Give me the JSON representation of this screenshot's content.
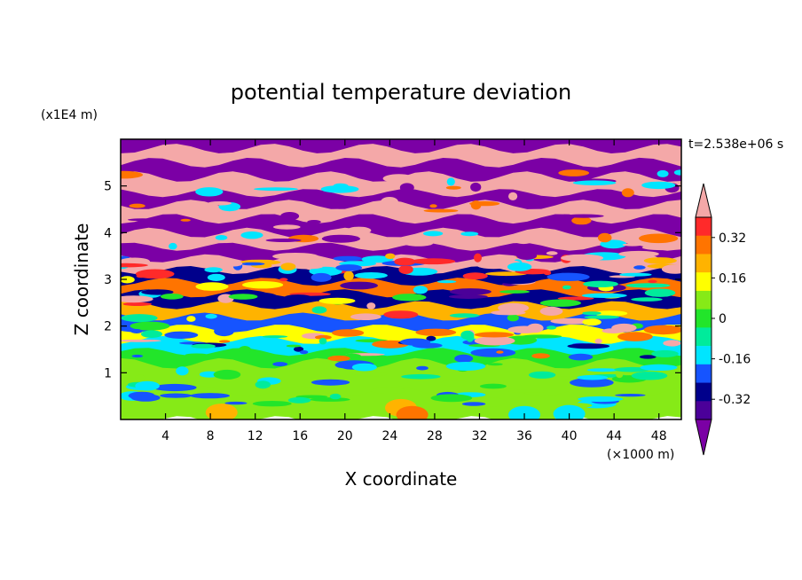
{
  "chart_data": {
    "type": "heatmap",
    "title": "potential temperature deviation",
    "xlabel": "X coordinate",
    "ylabel": "Z coordinate",
    "x_unit": "(×1000 m)",
    "y_unit": "(x1E4 m)",
    "time_label": "t=2.538e+06 s",
    "xlim": [
      0,
      50
    ],
    "ylim": [
      0,
      6
    ],
    "x_ticks": [
      4,
      8,
      12,
      16,
      20,
      24,
      28,
      32,
      36,
      40,
      44,
      48
    ],
    "y_ticks": [
      1,
      2,
      3,
      4,
      5
    ],
    "colorbar": {
      "levels": [
        -0.48,
        -0.4,
        -0.32,
        -0.24,
        -0.16,
        -0.08,
        0,
        0.08,
        0.16,
        0.24,
        0.32,
        0.4,
        0.48
      ],
      "labels": [
        "0.32",
        "0.16",
        "0",
        "-0.16",
        "-0.32"
      ],
      "label_values": [
        0.32,
        0.16,
        0,
        -0.16,
        -0.32
      ],
      "colors": [
        "#7b00a5",
        "#4b0099",
        "#00008b",
        "#1654ff",
        "#00e5ff",
        "#00eb9b",
        "#22e52a",
        "#86ea17",
        "#ffff00",
        "#ffb300",
        "#ff7400",
        "#ff2a2a",
        "#f4a8a8"
      ]
    },
    "bands": [
      {
        "z": [
          5.8,
          6.0
        ],
        "value": -0.5
      },
      {
        "z": [
          5.5,
          5.8
        ],
        "value": 0.5
      },
      {
        "z": [
          5.2,
          5.5
        ],
        "value": -0.5
      },
      {
        "z": [
          4.85,
          5.2
        ],
        "value": 0.5
      },
      {
        "z": [
          4.6,
          4.85
        ],
        "value": -0.5
      },
      {
        "z": [
          4.3,
          4.6
        ],
        "value": 0.5
      },
      {
        "z": [
          4.0,
          4.3
        ],
        "value": -0.5
      },
      {
        "z": [
          3.7,
          4.0
        ],
        "value": 0.5
      },
      {
        "z": [
          3.45,
          3.7
        ],
        "value": -0.5
      },
      {
        "z": [
          3.2,
          3.45
        ],
        "value": 0.5
      },
      {
        "z": [
          2.95,
          3.2
        ],
        "value": -0.36
      },
      {
        "z": [
          2.7,
          2.95
        ],
        "value": 0.3
      },
      {
        "z": [
          2.45,
          2.7
        ],
        "value": -0.4
      },
      {
        "z": [
          2.2,
          2.45
        ],
        "value": 0.2
      },
      {
        "z": [
          1.95,
          2.2
        ],
        "value": -0.3
      },
      {
        "z": [
          1.7,
          1.95
        ],
        "value": 0.1
      },
      {
        "z": [
          1.45,
          1.7
        ],
        "value": -0.2
      },
      {
        "z": [
          1.2,
          1.45
        ],
        "value": -0.05
      },
      {
        "z": [
          0.6,
          1.2
        ],
        "value": 0.0
      },
      {
        "z": [
          0.0,
          0.6
        ],
        "value": 0.05
      }
    ]
  }
}
